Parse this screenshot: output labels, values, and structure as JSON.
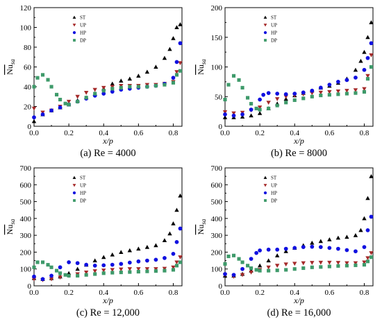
{
  "figure": {
    "x_label": "x/p",
    "y_label": "Nu",
    "y_label_sub": "sa"
  },
  "chart_data": [
    {
      "type": "scatter",
      "caption": "(a) Re = 4000",
      "xlim": [
        0.0,
        0.85
      ],
      "ylim": [
        0,
        120
      ],
      "xticks": [
        "0.0",
        "0.2",
        "0.4",
        "0.6",
        "0.8"
      ],
      "yticks": [
        "0",
        "20",
        "40",
        "60",
        "80",
        "100",
        "120"
      ],
      "legend": "top-left",
      "series": [
        {
          "name": "ST",
          "marker": "triangle-up",
          "color": "#000000",
          "x": [
            0.0,
            0.05,
            0.1,
            0.15,
            0.2,
            0.25,
            0.3,
            0.35,
            0.4,
            0.45,
            0.5,
            0.55,
            0.6,
            0.65,
            0.7,
            0.75,
            0.78,
            0.8,
            0.82,
            0.84
          ],
          "y": [
            5,
            12,
            16,
            19,
            22,
            26,
            29,
            33,
            38,
            43,
            46,
            48,
            51,
            55,
            60,
            69,
            78,
            89,
            100,
            103
          ]
        },
        {
          "name": "UP",
          "marker": "triangle-down",
          "color": "#a52a2a",
          "x": [
            0.0,
            0.05,
            0.1,
            0.15,
            0.2,
            0.25,
            0.3,
            0.35,
            0.4,
            0.45,
            0.5,
            0.55,
            0.6,
            0.65,
            0.7,
            0.75,
            0.8,
            0.82,
            0.84
          ],
          "y": [
            18,
            14,
            16,
            20,
            25,
            30,
            34,
            37,
            39,
            40,
            41,
            41,
            41,
            42,
            42,
            43,
            45,
            55,
            64
          ]
        },
        {
          "name": "HP",
          "marker": "circle",
          "color": "#1010e0",
          "x": [
            0.0,
            0.05,
            0.1,
            0.15,
            0.2,
            0.25,
            0.3,
            0.35,
            0.4,
            0.45,
            0.5,
            0.55,
            0.6,
            0.65,
            0.7,
            0.75,
            0.8,
            0.82,
            0.84
          ],
          "y": [
            9,
            12,
            16,
            19,
            22,
            25,
            28,
            31,
            33,
            35,
            37,
            38,
            39,
            40,
            41,
            43,
            49,
            65,
            84
          ]
        },
        {
          "name": "DP",
          "marker": "square",
          "color": "#3e9a6a",
          "x": [
            0.0,
            0.02,
            0.05,
            0.08,
            0.1,
            0.13,
            0.15,
            0.18,
            0.2,
            0.25,
            0.3,
            0.35,
            0.4,
            0.45,
            0.5,
            0.55,
            0.6,
            0.65,
            0.7,
            0.75,
            0.8,
            0.82,
            0.84
          ],
          "y": [
            40,
            49,
            52,
            47,
            40,
            32,
            27,
            23,
            22,
            25,
            29,
            33,
            36,
            38,
            39,
            40,
            40,
            40,
            41,
            42,
            44,
            52,
            56
          ]
        }
      ]
    },
    {
      "type": "scatter",
      "caption": "(b) Re = 8000",
      "xlim": [
        0.0,
        0.85
      ],
      "ylim": [
        0,
        200
      ],
      "xticks": [
        "0.0",
        "0.2",
        "0.4",
        "0.6",
        "0.8"
      ],
      "yticks": [
        "0",
        "50",
        "100",
        "150",
        "200"
      ],
      "legend": "top-left",
      "series": [
        {
          "name": "ST",
          "marker": "triangle-up",
          "color": "#000000",
          "x": [
            0.0,
            0.05,
            0.1,
            0.15,
            0.2,
            0.25,
            0.3,
            0.35,
            0.4,
            0.45,
            0.5,
            0.55,
            0.6,
            0.65,
            0.7,
            0.75,
            0.78,
            0.8,
            0.82,
            0.84
          ],
          "y": [
            15,
            15,
            16,
            18,
            22,
            30,
            38,
            46,
            52,
            56,
            60,
            65,
            68,
            73,
            80,
            95,
            110,
            125,
            150,
            175
          ]
        },
        {
          "name": "UP",
          "marker": "triangle-down",
          "color": "#a52a2a",
          "x": [
            0.0,
            0.05,
            0.1,
            0.15,
            0.2,
            0.25,
            0.3,
            0.35,
            0.4,
            0.45,
            0.5,
            0.55,
            0.6,
            0.65,
            0.7,
            0.75,
            0.8,
            0.82,
            0.84
          ],
          "y": [
            24,
            22,
            23,
            27,
            32,
            40,
            46,
            50,
            52,
            54,
            56,
            57,
            58,
            59,
            60,
            61,
            63,
            85,
            120
          ]
        },
        {
          "name": "HP",
          "marker": "circle",
          "color": "#1010e0",
          "x": [
            0.0,
            0.05,
            0.1,
            0.15,
            0.2,
            0.22,
            0.25,
            0.3,
            0.35,
            0.4,
            0.45,
            0.5,
            0.55,
            0.6,
            0.65,
            0.7,
            0.75,
            0.8,
            0.82,
            0.84
          ],
          "y": [
            20,
            18,
            20,
            28,
            45,
            53,
            56,
            55,
            54,
            55,
            57,
            60,
            65,
            70,
            75,
            78,
            82,
            95,
            115,
            140
          ]
        },
        {
          "name": "DP",
          "marker": "square",
          "color": "#3e9a6a",
          "x": [
            0.0,
            0.02,
            0.05,
            0.08,
            0.1,
            0.13,
            0.15,
            0.18,
            0.2,
            0.25,
            0.3,
            0.35,
            0.4,
            0.45,
            0.5,
            0.55,
            0.6,
            0.65,
            0.7,
            0.75,
            0.8,
            0.82,
            0.84
          ],
          "y": [
            45,
            70,
            85,
            78,
            65,
            48,
            38,
            30,
            28,
            30,
            35,
            40,
            44,
            47,
            50,
            52,
            53,
            54,
            55,
            56,
            58,
            80,
            100
          ]
        }
      ]
    },
    {
      "type": "scatter",
      "caption": "(c) Re = 12,000",
      "xlim": [
        0.0,
        0.85
      ],
      "ylim": [
        0,
        700
      ],
      "xticks": [
        "0.0",
        "0.2",
        "0.4",
        "0.6",
        "0.8"
      ],
      "yticks": [
        "0",
        "100",
        "200",
        "300",
        "400",
        "500",
        "600",
        "700"
      ],
      "legend": "top-left",
      "series": [
        {
          "name": "ST",
          "marker": "triangle-up",
          "color": "#000000",
          "x": [
            0.0,
            0.05,
            0.1,
            0.15,
            0.2,
            0.25,
            0.3,
            0.35,
            0.4,
            0.45,
            0.5,
            0.55,
            0.6,
            0.65,
            0.7,
            0.75,
            0.78,
            0.8,
            0.82,
            0.84
          ],
          "y": [
            45,
            40,
            45,
            55,
            75,
            100,
            125,
            150,
            170,
            185,
            200,
            210,
            220,
            230,
            240,
            270,
            310,
            370,
            450,
            535
          ]
        },
        {
          "name": "UP",
          "marker": "triangle-down",
          "color": "#a52a2a",
          "x": [
            0.0,
            0.05,
            0.1,
            0.15,
            0.2,
            0.25,
            0.3,
            0.35,
            0.4,
            0.45,
            0.5,
            0.55,
            0.6,
            0.65,
            0.7,
            0.75,
            0.8,
            0.82,
            0.84
          ],
          "y": [
            40,
            35,
            40,
            50,
            60,
            70,
            80,
            88,
            92,
            95,
            98,
            100,
            100,
            100,
            100,
            102,
            110,
            140,
            170
          ]
        },
        {
          "name": "HP",
          "marker": "circle",
          "color": "#1010e0",
          "x": [
            0.0,
            0.05,
            0.1,
            0.15,
            0.2,
            0.25,
            0.3,
            0.35,
            0.4,
            0.45,
            0.5,
            0.55,
            0.6,
            0.65,
            0.7,
            0.75,
            0.8,
            0.82,
            0.84
          ],
          "y": [
            55,
            40,
            60,
            110,
            140,
            135,
            125,
            120,
            122,
            125,
            130,
            138,
            145,
            150,
            155,
            165,
            190,
            260,
            340
          ]
        },
        {
          "name": "DP",
          "marker": "square",
          "color": "#3e9a6a",
          "x": [
            0.0,
            0.02,
            0.05,
            0.08,
            0.1,
            0.13,
            0.15,
            0.18,
            0.2,
            0.25,
            0.3,
            0.35,
            0.4,
            0.45,
            0.5,
            0.55,
            0.6,
            0.65,
            0.7,
            0.75,
            0.8,
            0.82,
            0.84
          ],
          "y": [
            110,
            140,
            140,
            125,
            110,
            90,
            75,
            65,
            60,
            60,
            65,
            70,
            75,
            78,
            80,
            82,
            84,
            86,
            88,
            90,
            95,
            120,
            140
          ]
        }
      ]
    },
    {
      "type": "scatter",
      "caption": "(d) Re = 16,000",
      "xlim": [
        0.0,
        0.85
      ],
      "ylim": [
        0,
        700
      ],
      "xticks": [
        "0.0",
        "0.2",
        "0.4",
        "0.6",
        "0.8"
      ],
      "yticks": [
        "0",
        "100",
        "200",
        "300",
        "400",
        "500",
        "600",
        "700"
      ],
      "legend": "top-left",
      "series": [
        {
          "name": "ST",
          "marker": "triangle-up",
          "color": "#000000",
          "x": [
            0.0,
            0.05,
            0.1,
            0.15,
            0.2,
            0.25,
            0.3,
            0.35,
            0.4,
            0.45,
            0.5,
            0.55,
            0.6,
            0.65,
            0.7,
            0.75,
            0.78,
            0.8,
            0.82,
            0.84
          ],
          "y": [
            60,
            60,
            70,
            90,
            120,
            150,
            180,
            205,
            225,
            240,
            255,
            265,
            275,
            285,
            290,
            300,
            330,
            400,
            520,
            650
          ]
        },
        {
          "name": "UP",
          "marker": "triangle-down",
          "color": "#a52a2a",
          "x": [
            0.0,
            0.05,
            0.1,
            0.15,
            0.2,
            0.25,
            0.3,
            0.35,
            0.4,
            0.45,
            0.5,
            0.55,
            0.6,
            0.65,
            0.7,
            0.75,
            0.8,
            0.82,
            0.84
          ],
          "y": [
            65,
            55,
            65,
            80,
            95,
            110,
            120,
            128,
            132,
            135,
            137,
            138,
            138,
            137,
            135,
            135,
            140,
            165,
            195
          ]
        },
        {
          "name": "HP",
          "marker": "circle",
          "color": "#1010e0",
          "x": [
            0.0,
            0.05,
            0.1,
            0.15,
            0.18,
            0.2,
            0.25,
            0.3,
            0.35,
            0.4,
            0.45,
            0.5,
            0.55,
            0.6,
            0.65,
            0.7,
            0.75,
            0.8,
            0.82,
            0.84
          ],
          "y": [
            70,
            65,
            100,
            160,
            195,
            210,
            215,
            215,
            220,
            225,
            230,
            232,
            230,
            225,
            220,
            212,
            205,
            230,
            330,
            410
          ]
        },
        {
          "name": "DP",
          "marker": "square",
          "color": "#3e9a6a",
          "x": [
            0.0,
            0.02,
            0.05,
            0.08,
            0.1,
            0.13,
            0.15,
            0.18,
            0.2,
            0.25,
            0.3,
            0.35,
            0.4,
            0.45,
            0.5,
            0.55,
            0.6,
            0.65,
            0.7,
            0.75,
            0.8,
            0.82,
            0.84
          ],
          "y": [
            130,
            175,
            180,
            160,
            140,
            120,
            105,
            95,
            90,
            90,
            92,
            95,
            100,
            105,
            110,
            112,
            115,
            118,
            120,
            122,
            125,
            145,
            170
          ]
        }
      ]
    }
  ]
}
